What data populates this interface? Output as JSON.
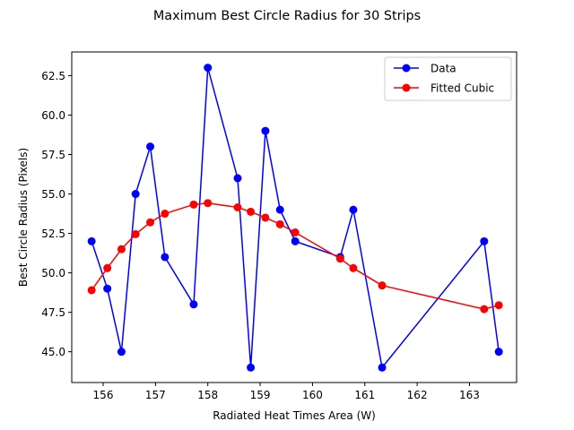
{
  "chart_data": {
    "type": "line",
    "title": "Maximum Best Circle Radius for 30 Strips",
    "xlabel": "Radiated Heat Times Area (W)",
    "ylabel": "Best Circle Radius (Pixels)",
    "xlim": [
      155.4,
      163.9
    ],
    "ylim": [
      43.05,
      64.0
    ],
    "xticks": [
      156,
      157,
      158,
      159,
      160,
      161,
      162,
      163
    ],
    "yticks": [
      45.0,
      47.5,
      50.0,
      52.5,
      55.0,
      57.5,
      60.0,
      62.5
    ],
    "legend_position": "top-right",
    "series": [
      {
        "name": "Data",
        "color": "#0000ff",
        "x": [
          155.78,
          156.08,
          156.35,
          156.62,
          156.9,
          157.18,
          157.73,
          158.0,
          158.57,
          158.82,
          159.1,
          159.38,
          159.67,
          160.53,
          160.78,
          161.33,
          163.28,
          163.56
        ],
        "y": [
          52.0,
          49.0,
          45.0,
          55.0,
          58.0,
          51.0,
          48.0,
          63.0,
          56.0,
          44.0,
          59.0,
          54.0,
          52.0,
          51.0,
          54.0,
          44.0,
          52.0,
          45.0
        ]
      },
      {
        "name": "Fitted Cubic",
        "color": "#ff0000",
        "x": [
          155.78,
          156.08,
          156.35,
          156.62,
          156.9,
          157.18,
          157.73,
          158.0,
          158.57,
          158.82,
          159.1,
          159.38,
          159.67,
          160.53,
          160.78,
          161.33,
          163.28,
          163.56
        ],
        "y": [
          48.9,
          50.3,
          51.5,
          52.45,
          53.2,
          53.75,
          54.33,
          54.42,
          54.15,
          53.87,
          53.5,
          53.08,
          52.56,
          50.9,
          50.3,
          49.2,
          47.7,
          47.95
        ]
      }
    ]
  }
}
